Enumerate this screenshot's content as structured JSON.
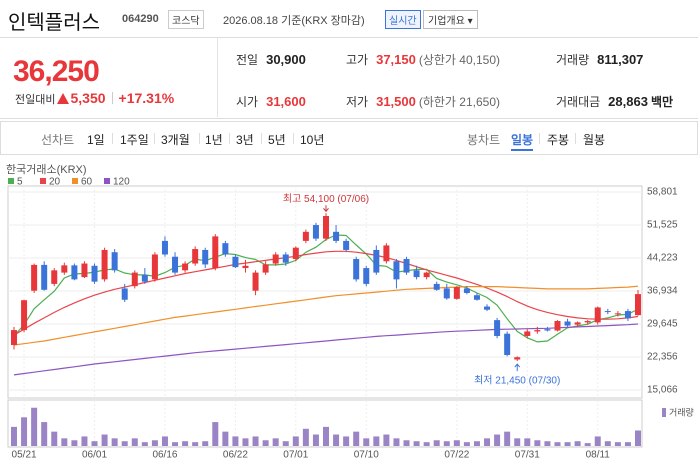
{
  "header": {
    "name": "인텍플러스",
    "code": "064290",
    "market": "코스닥",
    "date": "2026.08.18 기준(KRX 장마감)",
    "realtime": "실시간",
    "company_info": "기업개요"
  },
  "price": {
    "current": "36,250",
    "change_label": "전일대비",
    "change": "5,350",
    "change_pct": "+17.31%"
  },
  "stats": [
    {
      "label": "전일",
      "value": "30,900"
    },
    {
      "label": "고가",
      "value": "37,150",
      "note": "(상한가 40,150)"
    },
    {
      "label": "거래량",
      "value": "811,307"
    },
    {
      "label": "시가",
      "value": "31,600"
    },
    {
      "label": "저가",
      "value": "31,500",
      "note": "(하한가 21,650)"
    },
    {
      "label": "거래대금",
      "value": "28,863",
      "unit": "백만"
    }
  ],
  "tabs": {
    "line": {
      "label": "선차트",
      "items": [
        "1일",
        "1주일",
        "3개월",
        "1년",
        "3년",
        "5년",
        "10년"
      ]
    },
    "candle": {
      "label": "봉차트",
      "items": [
        "일봉",
        "주봉",
        "월봉"
      ]
    }
  },
  "chart_data": {
    "type": "candlestick",
    "source": "한국거래소(KRX)",
    "up_color": "#e8373a",
    "down_color": "#3b73d9",
    "grid": true,
    "categories": [
      null,
      "05/21",
      null,
      null,
      null,
      null,
      null,
      null,
      "06/01",
      null,
      null,
      null,
      null,
      null,
      null,
      "06/16",
      null,
      null,
      null,
      null,
      null,
      null,
      "06/22",
      null,
      null,
      null,
      null,
      null,
      "07/01",
      null,
      null,
      null,
      null,
      null,
      null,
      "07/10",
      null,
      null,
      null,
      null,
      null,
      null,
      null,
      null,
      "07/22",
      null,
      null,
      null,
      null,
      null,
      null,
      "07/31",
      null,
      null,
      null,
      null,
      null,
      null,
      "08/11",
      null,
      null,
      null,
      null
    ],
    "open": [
      25000,
      28300,
      37000,
      42700,
      38500,
      41000,
      42600,
      40000,
      42500,
      39500,
      45500,
      37500,
      38000,
      40500,
      39500,
      48000,
      44500,
      41500,
      43000,
      46000,
      42000,
      47500,
      44500,
      42000,
      37000,
      41000,
      43000,
      45000,
      44000,
      48000,
      51500,
      48500,
      50000,
      48000,
      44000,
      42000,
      46000,
      43500,
      43500,
      44000,
      41500,
      40000,
      38500,
      37500,
      35200,
      37500,
      36000,
      33500,
      30500,
      27500,
      21800,
      27000,
      28000,
      28500,
      28200,
      30200,
      29500,
      30000,
      30000,
      32500,
      31800,
      32500,
      31600
    ],
    "high": [
      29000,
      35000,
      43000,
      43500,
      42000,
      43200,
      43000,
      43500,
      43000,
      46500,
      46200,
      38500,
      41500,
      42000,
      45500,
      49000,
      45500,
      43500,
      46800,
      46500,
      49500,
      48000,
      45000,
      43800,
      41500,
      43500,
      45500,
      45500,
      46800,
      50500,
      52000,
      54100,
      51500,
      48500,
      44500,
      42500,
      47000,
      47500,
      44000,
      44500,
      42500,
      41200,
      39000,
      38500,
      38000,
      38000,
      36500,
      34000,
      31000,
      28000,
      22500,
      28500,
      29000,
      29000,
      30500,
      30800,
      30200,
      30500,
      33500,
      33000,
      32500,
      33000,
      37150
    ],
    "low": [
      24000,
      27800,
      36500,
      37000,
      38000,
      40500,
      39300,
      39800,
      38500,
      39000,
      41000,
      34500,
      37500,
      38500,
      39000,
      44500,
      40500,
      41000,
      42500,
      42000,
      41500,
      44500,
      42000,
      41000,
      36000,
      40500,
      42500,
      42500,
      43500,
      47500,
      48000,
      48000,
      47500,
      45500,
      39000,
      38000,
      40500,
      43000,
      37500,
      40500,
      39500,
      39500,
      37000,
      35000,
      35000,
      36200,
      34800,
      32500,
      26500,
      22500,
      21450,
      26500,
      27500,
      28000,
      28000,
      29000,
      29000,
      29500,
      29500,
      31800,
      31300,
      30300,
      31500
    ],
    "close": [
      28300,
      34900,
      42700,
      37200,
      41500,
      42600,
      39500,
      43000,
      39000,
      46000,
      41500,
      35000,
      41000,
      39000,
      45000,
      45000,
      41000,
      43000,
      46200,
      42800,
      49000,
      45000,
      42200,
      42500,
      41000,
      42800,
      45000,
      43200,
      46500,
      50000,
      48500,
      53500,
      48000,
      46000,
      39500,
      38500,
      41000,
      47000,
      39500,
      41000,
      40000,
      41000,
      37200,
      35300,
      37800,
      36500,
      35000,
      32800,
      27000,
      22800,
      22300,
      28000,
      28300,
      28200,
      30300,
      29300,
      30000,
      30300,
      33300,
      32300,
      32000,
      30900,
      36250
    ],
    "ylim": [
      15066,
      58801
    ],
    "yticks": [
      {
        "value": 15066,
        "label": "15,066"
      },
      {
        "value": 22356,
        "label": "22,356"
      },
      {
        "value": 29645,
        "label": "29,645"
      },
      {
        "value": 36934,
        "label": "36,934"
      },
      {
        "value": 44223,
        "label": "44,223"
      },
      {
        "value": 51525,
        "label": "51,525"
      },
      {
        "value": 58801,
        "label": "58,801"
      }
    ],
    "moving_averages": [
      {
        "name": "5",
        "color": "#4caf50",
        "values": [
          27000,
          29500,
          33000,
          35000,
          36900,
          39800,
          40700,
          40800,
          41100,
          41600,
          41800,
          40900,
          40500,
          40500,
          40200,
          41000,
          42200,
          42600,
          44000,
          43600,
          44400,
          45200,
          45000,
          44300,
          43900,
          42700,
          42700,
          42900,
          43700,
          45500,
          46600,
          48300,
          49300,
          49200,
          47100,
          45100,
          42600,
          42400,
          41100,
          41400,
          41700,
          41700,
          39700,
          38900,
          38300,
          37600,
          36500,
          35500,
          33800,
          30800,
          28000,
          26600,
          25700,
          25900,
          27400,
          28800,
          29200,
          29600,
          30600,
          31000,
          31600,
          31800,
          32900
        ]
      },
      {
        "name": "20",
        "color": "#e8454a",
        "values": [
          27200,
          28500,
          29800,
          31000,
          32200,
          33300,
          34300,
          35200,
          36000,
          36700,
          37300,
          37800,
          38300,
          38800,
          39300,
          39800,
          40300,
          40800,
          41200,
          41600,
          42000,
          42400,
          42800,
          43100,
          43400,
          43700,
          44000,
          44300,
          44600,
          45000,
          45300,
          45600,
          45700,
          45700,
          45500,
          45200,
          44800,
          44300,
          43700,
          43000,
          42300,
          41600,
          41000,
          40400,
          39800,
          39100,
          38400,
          37600,
          36700,
          35700,
          34600,
          33600,
          32800,
          32200,
          31700,
          31300,
          31000,
          30800,
          30700,
          30700,
          30800,
          31000,
          31300
        ]
      },
      {
        "name": "60",
        "color": "#f0902a",
        "values": [
          25000,
          25300,
          25600,
          25900,
          26300,
          26700,
          27100,
          27500,
          27900,
          28300,
          28700,
          29100,
          29500,
          29900,
          30300,
          30700,
          31100,
          31400,
          31700,
          32000,
          32300,
          32600,
          32900,
          33200,
          33500,
          33800,
          34100,
          34400,
          34700,
          35000,
          35300,
          35600,
          35900,
          36100,
          36300,
          36500,
          36700,
          36900,
          37100,
          37300,
          37400,
          37500,
          37600,
          37700,
          37800,
          37900,
          37900,
          37900,
          37900,
          37800,
          37700,
          37600,
          37500,
          37400,
          37400,
          37400,
          37400,
          37400,
          37500,
          37600,
          37700,
          37800,
          38000
        ]
      },
      {
        "name": "120",
        "color": "#8e55c2",
        "values": [
          18400,
          18700,
          19000,
          19300,
          19600,
          19900,
          20200,
          20500,
          20800,
          21050,
          21300,
          21550,
          21800,
          22050,
          22300,
          22550,
          22800,
          23050,
          23300,
          23500,
          23700,
          23900,
          24100,
          24300,
          24500,
          24700,
          24900,
          25100,
          25300,
          25500,
          25700,
          25900,
          26100,
          26300,
          26500,
          26700,
          26900,
          27050,
          27200,
          27350,
          27500,
          27650,
          27800,
          27950,
          28050,
          28150,
          28250,
          28350,
          28450,
          28500,
          28550,
          28600,
          28650,
          28700,
          28800,
          28900,
          29000,
          29100,
          29200,
          29300,
          29400,
          29500,
          29650
        ]
      }
    ],
    "annotations": {
      "high": "최고 54,100 (07/06)",
      "low": "최저 21,450 (07/30)"
    },
    "volume_label": "거래량",
    "volume_color": "#9b84c6",
    "vlim": [
      0,
      2300000
    ],
    "volume": [
      1000000,
      1500000,
      2000000,
      1250000,
      750000,
      400000,
      300000,
      500000,
      250000,
      600000,
      400000,
      250000,
      400000,
      200000,
      300000,
      500000,
      200000,
      250000,
      200000,
      250000,
      1250000,
      750000,
      500000,
      400000,
      500000,
      300000,
      400000,
      250000,
      500000,
      900000,
      600000,
      1000000,
      600000,
      500000,
      750000,
      400000,
      500000,
      600000,
      400000,
      300000,
      250000,
      200000,
      300000,
      250000,
      300000,
      200000,
      250000,
      400000,
      600000,
      750000,
      400000,
      400000,
      300000,
      250000,
      200000,
      200000,
      250000,
      150000,
      500000,
      250000,
      200000,
      200000,
      811307
    ]
  }
}
